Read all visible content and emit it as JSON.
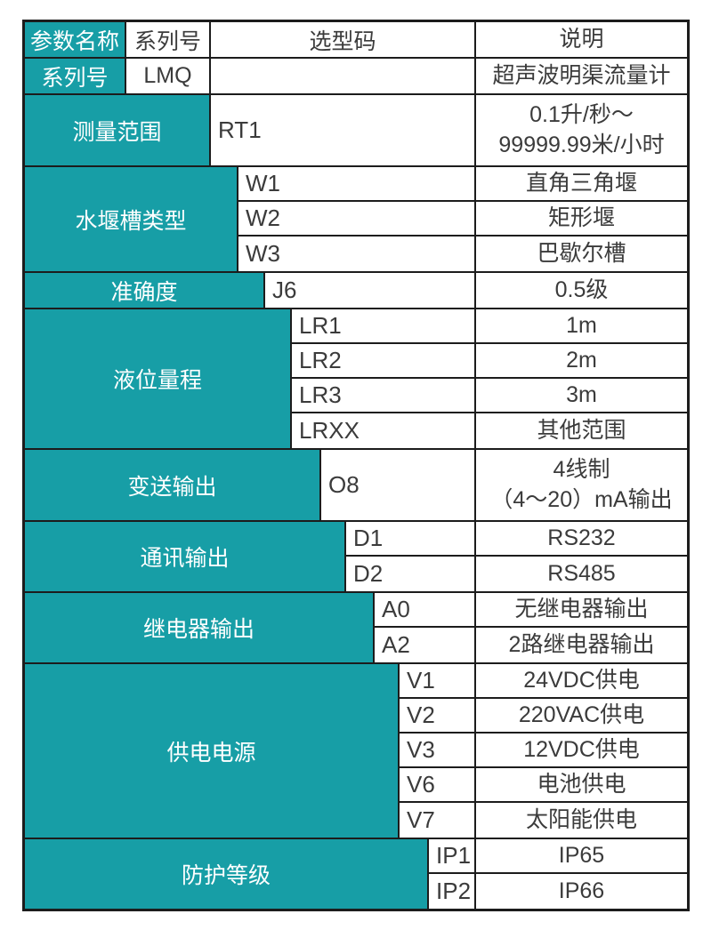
{
  "colors": {
    "accent": "#179ea6",
    "border": "#1c1c1c",
    "text": "#3b3b3b",
    "label_text": "#ffffff"
  },
  "table": {
    "header": {
      "param": "参数名称",
      "series": "系列号",
      "code": "选型码",
      "desc": "说明"
    },
    "series_row": {
      "param": "系列号",
      "series": "LMQ",
      "code": "",
      "desc": "超声波明渠流量计"
    },
    "sections": [
      {
        "param": "测量范围",
        "rows": [
          {
            "code": "RT1",
            "desc": [
              "0.1升/秒～",
              "99999.99米/小时"
            ]
          }
        ]
      },
      {
        "param": "水堰槽类型",
        "rows": [
          {
            "code": "W1",
            "desc": "直角三角堰"
          },
          {
            "code": "W2",
            "desc": "矩形堰"
          },
          {
            "code": "W3",
            "desc": "巴歇尔槽"
          }
        ]
      },
      {
        "param": "准确度",
        "rows": [
          {
            "code": "J6",
            "desc": "0.5级"
          }
        ]
      },
      {
        "param": "液位量程",
        "rows": [
          {
            "code": "LR1",
            "desc": "1m"
          },
          {
            "code": "LR2",
            "desc": "2m"
          },
          {
            "code": "LR3",
            "desc": "3m"
          },
          {
            "code": "LRXX",
            "desc": "其他范围"
          }
        ]
      },
      {
        "param": "变送输出",
        "rows": [
          {
            "code": "O8",
            "desc": [
              "4线制",
              "（4～20）mA输出"
            ]
          }
        ]
      },
      {
        "param": "通讯输出",
        "rows": [
          {
            "code": "D1",
            "desc": "RS232"
          },
          {
            "code": "D2",
            "desc": "RS485"
          }
        ]
      },
      {
        "param": "继电器输出",
        "rows": [
          {
            "code": "A0",
            "desc": "无继电器输出"
          },
          {
            "code": "A2",
            "desc": "2路继电器输出"
          }
        ]
      },
      {
        "param": "供电电源",
        "rows": [
          {
            "code": "V1",
            "desc": "24VDC供电"
          },
          {
            "code": "V2",
            "desc": "220VAC供电"
          },
          {
            "code": "V3",
            "desc": "12VDC供电"
          },
          {
            "code": "V6",
            "desc": "电池供电"
          },
          {
            "code": "V7",
            "desc": "太阳能供电"
          }
        ]
      },
      {
        "param": "防护等级",
        "rows": [
          {
            "code": "IP1",
            "desc": "IP65"
          },
          {
            "code": "IP2",
            "desc": "IP66"
          }
        ]
      }
    ]
  }
}
